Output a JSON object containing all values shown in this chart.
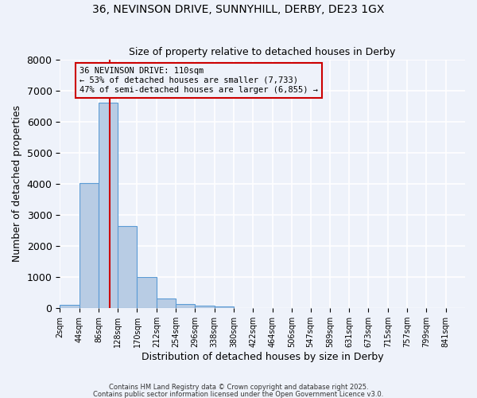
{
  "title1": "36, NEVINSON DRIVE, SUNNYHILL, DERBY, DE23 1GX",
  "title2": "Size of property relative to detached houses in Derby",
  "xlabel": "Distribution of detached houses by size in Derby",
  "ylabel": "Number of detached properties",
  "bar_color": "#b8cce4",
  "bar_edge_color": "#5b9bd5",
  "background_color": "#eef2fa",
  "grid_color": "#ffffff",
  "bin_edges": [
    2,
    44,
    86,
    128,
    170,
    212,
    254,
    296,
    338,
    380,
    422,
    464,
    506,
    547,
    589,
    631,
    673,
    715,
    757,
    799,
    841,
    883
  ],
  "counts": [
    100,
    4020,
    6600,
    2650,
    1000,
    320,
    130,
    80,
    60,
    10,
    5,
    0,
    0,
    0,
    0,
    0,
    0,
    0,
    0,
    0,
    0
  ],
  "tick_labels": [
    "2sqm",
    "44sqm",
    "86sqm",
    "128sqm",
    "170sqm",
    "212sqm",
    "254sqm",
    "296sqm",
    "338sqm",
    "380sqm",
    "422sqm",
    "464sqm",
    "506sqm",
    "547sqm",
    "589sqm",
    "631sqm",
    "673sqm",
    "715sqm",
    "757sqm",
    "799sqm",
    "841sqm"
  ],
  "property_size": 110,
  "vline_color": "#cc0000",
  "annotation_text": "36 NEVINSON DRIVE: 110sqm\n← 53% of detached houses are smaller (7,733)\n47% of semi-detached houses are larger (6,855) →",
  "annotation_box_color": "#cc0000",
  "ylim": [
    0,
    8000
  ],
  "yticks": [
    0,
    1000,
    2000,
    3000,
    4000,
    5000,
    6000,
    7000,
    8000
  ],
  "footnote1": "Contains HM Land Registry data © Crown copyright and database right 2025.",
  "footnote2": "Contains public sector information licensed under the Open Government Licence v3.0."
}
